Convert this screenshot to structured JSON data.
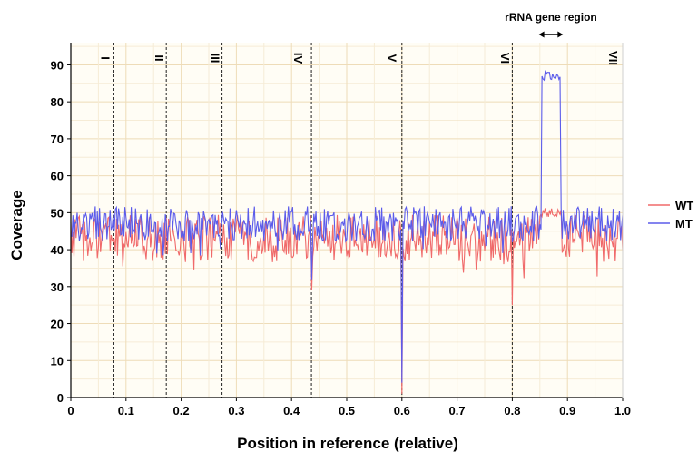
{
  "chart_data": {
    "type": "line",
    "title": "",
    "xlabel": "Position in reference (relative)",
    "ylabel": "Coverage",
    "xlim": [
      0,
      1.0
    ],
    "ylim": [
      0,
      96
    ],
    "x_ticks": [
      0,
      0.1,
      0.2,
      0.3,
      0.4,
      0.5,
      0.6,
      0.7,
      0.8,
      0.9,
      1.0
    ],
    "x_tick_labels": [
      "0",
      "0.1",
      "0.2",
      "0.3",
      "0.4",
      "0.5",
      "0.6",
      "0.7",
      "0.8",
      "0.9",
      "1.0"
    ],
    "y_ticks": [
      0,
      10,
      20,
      30,
      40,
      50,
      60,
      70,
      80,
      90
    ],
    "y_tick_labels": [
      "0",
      "10",
      "20",
      "30",
      "40",
      "50",
      "60",
      "70",
      "80",
      "90"
    ],
    "grid": true,
    "legend": {
      "placement": "right"
    },
    "chromosome_boundaries": [
      0.078,
      0.173,
      0.274,
      0.436,
      0.6,
      0.8
    ],
    "chromosomes": [
      {
        "label": "I",
        "x": 0.055
      },
      {
        "label": "II",
        "x": 0.153
      },
      {
        "label": "III",
        "x": 0.254
      },
      {
        "label": "IV",
        "x": 0.405
      },
      {
        "label": "V",
        "x": 0.575
      },
      {
        "label": "VI",
        "x": 0.78
      },
      {
        "label": "VII",
        "x": 0.975
      }
    ],
    "annotation": {
      "text": "rRNA gene region",
      "x_start": 0.848,
      "x_end": 0.892
    },
    "series": [
      {
        "name": "WT",
        "color": "#f06a6a",
        "baseline": 43,
        "amplitude": 4,
        "features": [
          {
            "x": 0.436,
            "y": 29
          },
          {
            "x": 0.6,
            "y": 1
          },
          {
            "x": 0.8,
            "y": 25
          },
          {
            "x_range": [
              0.85,
              0.89
            ],
            "y": 50
          }
        ]
      },
      {
        "name": "MT",
        "color": "#5b5bea",
        "baseline": 47,
        "amplitude": 3,
        "features": [
          {
            "x": 0.436,
            "y": 32
          },
          {
            "x": 0.6,
            "y": 4
          },
          {
            "x": 0.8,
            "y": 42
          },
          {
            "x_range": [
              0.853,
              0.888
            ],
            "y": 87
          }
        ]
      }
    ]
  }
}
